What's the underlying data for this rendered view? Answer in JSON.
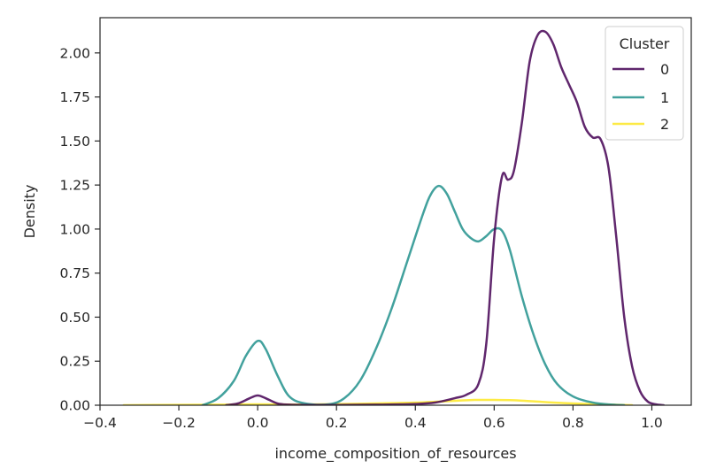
{
  "chart_data": {
    "type": "line",
    "title": "",
    "xlabel": "income_composition_of_resources",
    "ylabel": "Density",
    "xlim": [
      -0.4,
      1.1
    ],
    "ylim": [
      0,
      2.2
    ],
    "grid": false,
    "x_ticks": [
      -0.4,
      -0.2,
      0.0,
      0.2,
      0.4,
      0.6,
      0.8,
      1.0
    ],
    "x_tick_labels": [
      "−0.4",
      "−0.2",
      "0.0",
      "0.2",
      "0.4",
      "0.6",
      "0.8",
      "1.0"
    ],
    "y_ticks": [
      0,
      0.25,
      0.5,
      0.75,
      1.0,
      1.25,
      1.5,
      1.75,
      2.0
    ],
    "y_tick_labels": [
      "0.00",
      "0.25",
      "0.50",
      "0.75",
      "1.00",
      "1.25",
      "1.50",
      "1.75",
      "2.00"
    ],
    "legend": {
      "title": "Cluster",
      "position": "top-right"
    },
    "series": [
      {
        "name": "0",
        "color": "#440154",
        "points": [
          [
            -0.08,
            0
          ],
          [
            -0.05,
            0.01
          ],
          [
            -0.02,
            0.04
          ],
          [
            0.0,
            0.055
          ],
          [
            0.02,
            0.04
          ],
          [
            0.05,
            0.01
          ],
          [
            0.08,
            0.003
          ],
          [
            0.15,
            0.001
          ],
          [
            0.3,
            0.003
          ],
          [
            0.4,
            0.007
          ],
          [
            0.45,
            0.015
          ],
          [
            0.5,
            0.04
          ],
          [
            0.53,
            0.06
          ],
          [
            0.56,
            0.12
          ],
          [
            0.58,
            0.35
          ],
          [
            0.6,
            0.95
          ],
          [
            0.62,
            1.3
          ],
          [
            0.635,
            1.28
          ],
          [
            0.65,
            1.33
          ],
          [
            0.67,
            1.6
          ],
          [
            0.69,
            1.95
          ],
          [
            0.71,
            2.1
          ],
          [
            0.73,
            2.12
          ],
          [
            0.75,
            2.05
          ],
          [
            0.77,
            1.92
          ],
          [
            0.79,
            1.82
          ],
          [
            0.81,
            1.72
          ],
          [
            0.83,
            1.58
          ],
          [
            0.85,
            1.52
          ],
          [
            0.87,
            1.51
          ],
          [
            0.89,
            1.35
          ],
          [
            0.91,
            0.95
          ],
          [
            0.93,
            0.5
          ],
          [
            0.95,
            0.22
          ],
          [
            0.97,
            0.08
          ],
          [
            0.99,
            0.02
          ],
          [
            1.01,
            0.005
          ],
          [
            1.03,
            0
          ]
        ]
      },
      {
        "name": "1",
        "color": "#21918c",
        "points": [
          [
            -0.14,
            0
          ],
          [
            -0.1,
            0.04
          ],
          [
            -0.06,
            0.14
          ],
          [
            -0.03,
            0.28
          ],
          [
            0.0,
            0.365
          ],
          [
            0.02,
            0.32
          ],
          [
            0.05,
            0.17
          ],
          [
            0.08,
            0.05
          ],
          [
            0.12,
            0.01
          ],
          [
            0.18,
            0.005
          ],
          [
            0.22,
            0.04
          ],
          [
            0.26,
            0.14
          ],
          [
            0.3,
            0.32
          ],
          [
            0.34,
            0.55
          ],
          [
            0.38,
            0.82
          ],
          [
            0.42,
            1.09
          ],
          [
            0.44,
            1.2
          ],
          [
            0.46,
            1.245
          ],
          [
            0.48,
            1.2
          ],
          [
            0.5,
            1.1
          ],
          [
            0.52,
            1.0
          ],
          [
            0.54,
            0.95
          ],
          [
            0.56,
            0.93
          ],
          [
            0.58,
            0.96
          ],
          [
            0.6,
            1.0
          ],
          [
            0.62,
            0.99
          ],
          [
            0.64,
            0.88
          ],
          [
            0.67,
            0.62
          ],
          [
            0.7,
            0.4
          ],
          [
            0.73,
            0.23
          ],
          [
            0.76,
            0.12
          ],
          [
            0.8,
            0.05
          ],
          [
            0.85,
            0.015
          ],
          [
            0.9,
            0.003
          ],
          [
            0.93,
            0
          ]
        ]
      },
      {
        "name": "2",
        "color": "#fde725",
        "points": [
          [
            -0.34,
            0
          ],
          [
            -0.2,
            0.002
          ],
          [
            -0.1,
            0.003
          ],
          [
            0.0,
            0.005
          ],
          [
            0.1,
            0.004
          ],
          [
            0.2,
            0.006
          ],
          [
            0.3,
            0.01
          ],
          [
            0.4,
            0.015
          ],
          [
            0.5,
            0.025
          ],
          [
            0.55,
            0.03
          ],
          [
            0.6,
            0.03
          ],
          [
            0.65,
            0.028
          ],
          [
            0.7,
            0.022
          ],
          [
            0.75,
            0.015
          ],
          [
            0.8,
            0.01
          ],
          [
            0.85,
            0.006
          ],
          [
            0.9,
            0.003
          ],
          [
            0.95,
            0
          ]
        ]
      }
    ]
  }
}
